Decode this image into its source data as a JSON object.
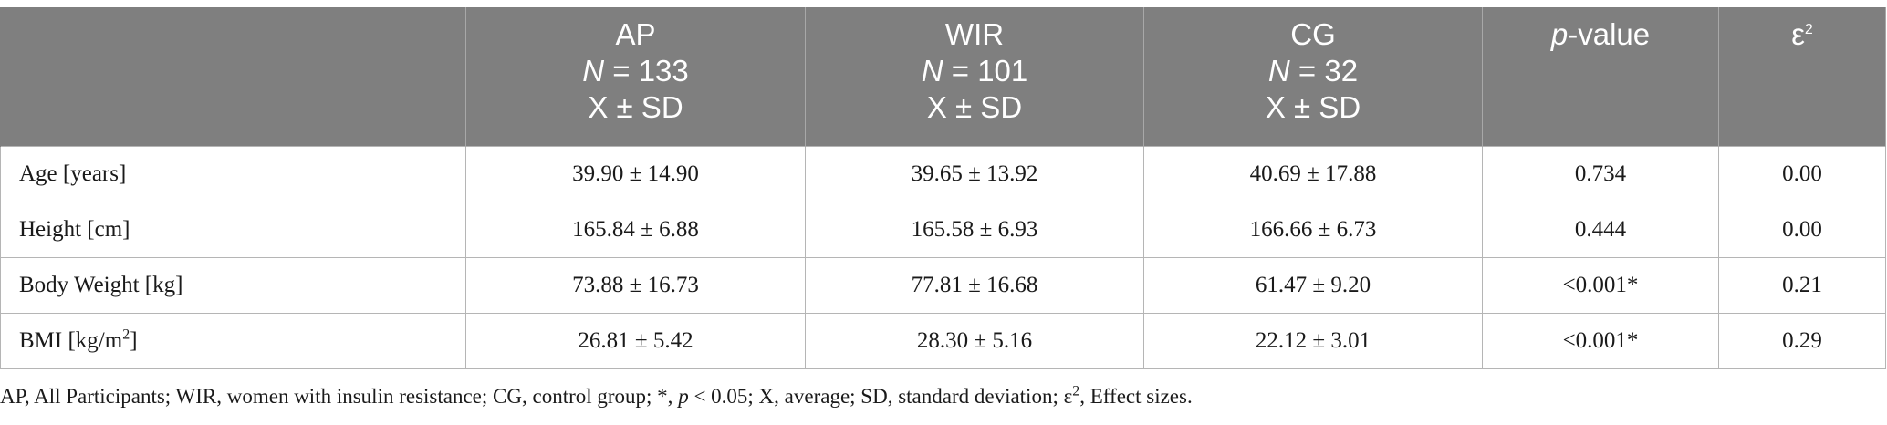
{
  "table": {
    "headers": [
      {
        "key": "empty",
        "lines": [
          ""
        ]
      },
      {
        "key": "ap",
        "name": "AP",
        "n_label": "N",
        "n_value": "= 133",
        "stat": "X ± SD"
      },
      {
        "key": "wir",
        "name": "WIR",
        "n_label": "N",
        "n_value": "= 101",
        "stat": "X ± SD"
      },
      {
        "key": "cg",
        "name": "CG",
        "n_label": "N",
        "n_value": "= 32",
        "stat": "X ± SD"
      },
      {
        "key": "pvalue",
        "p": "p",
        "rest": "-value"
      },
      {
        "key": "effect",
        "symbol": "ε",
        "sup": "2"
      }
    ],
    "rows": [
      {
        "label": "Age [years]",
        "ap": "39.90 ± 14.90",
        "wir": "39.65 ± 13.92",
        "cg": "40.69 ± 17.88",
        "p": "0.734",
        "eps": "0.00"
      },
      {
        "label": "Height [cm]",
        "ap": "165.84 ± 6.88",
        "wir": "165.58 ± 6.93",
        "cg": "166.66 ± 6.73",
        "p": "0.444",
        "eps": "0.00"
      },
      {
        "label": "Body Weight [kg]",
        "ap": "73.88 ± 16.73",
        "wir": "77.81 ± 16.68",
        "cg": "61.47 ± 9.20",
        "p": "<0.001*",
        "eps": "0.21"
      },
      {
        "label_main": "BMI [kg/m",
        "label_sup": "2",
        "label_end": "]",
        "ap": "26.81 ± 5.42",
        "wir": "28.30 ± 5.16",
        "cg": "22.12 ± 3.01",
        "p": "<0.001*",
        "eps": "0.29"
      }
    ]
  },
  "footnote": {
    "part1": "AP, All Participants; WIR, women with insulin resistance; CG, control group; *, ",
    "p_italic": "p",
    "part2": " < 0.05; X, average; SD, standard deviation; ε",
    "sup": "2",
    "part3": ", Effect sizes."
  },
  "colors": {
    "header_bg": "#7f7f7f",
    "header_text": "#ffffff",
    "grid": "#b5b5b5"
  }
}
